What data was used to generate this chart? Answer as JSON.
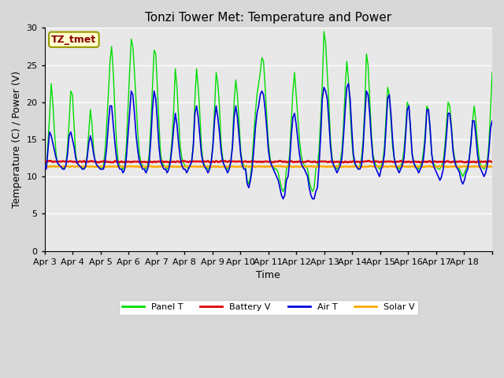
{
  "title": "Tonzi Tower Met: Temperature and Power",
  "xlabel": "Time",
  "ylabel": "Temperature (C) / Power (V)",
  "ylim": [
    0,
    30
  ],
  "yticks": [
    0,
    5,
    10,
    15,
    20,
    25,
    30
  ],
  "x_labels": [
    "Apr 3",
    "Apr 4",
    "Apr 5",
    "Apr 6",
    "Apr 7",
    "Apr 8",
    "Apr 9",
    "Apr 10",
    "Apr 11",
    "Apr 12",
    "Apr 13",
    "Apr 14",
    "Apr 15",
    "Apr 16",
    "Apr 17",
    "Apr 18"
  ],
  "fig_bg_color": "#d8d8d8",
  "plot_bg_color": "#e8e8e8",
  "annotation_text": "TZ_tmet",
  "annotation_fg": "#880000",
  "annotation_bg": "#ffffcc",
  "annotation_edge": "#999900",
  "legend_entries": [
    "Panel T",
    "Battery V",
    "Air T",
    "Solar V"
  ],
  "legend_colors": [
    "#00dd00",
    "#dd0000",
    "#0000dd",
    "#ffaa00"
  ],
  "panel_t_color": "#00dd00",
  "battery_v_color": "#dd0000",
  "air_t_color": "#0000dd",
  "solar_v_color": "#ffaa00",
  "title_fontsize": 11,
  "axis_fontsize": 9,
  "tick_fontsize": 8,
  "grid_color": "#ffffff",
  "panel_t_data": [
    11.5,
    11.3,
    14.5,
    18.0,
    22.5,
    20.0,
    16.0,
    13.0,
    11.8,
    11.5,
    11.3,
    11.2,
    11.0,
    11.5,
    14.0,
    17.5,
    21.5,
    21.0,
    17.0,
    13.0,
    11.8,
    11.5,
    11.3,
    11.2,
    11.0,
    11.5,
    13.0,
    16.0,
    19.0,
    17.0,
    13.5,
    12.0,
    11.5,
    11.3,
    11.2,
    11.0,
    11.5,
    13.5,
    17.0,
    21.0,
    25.5,
    27.5,
    24.0,
    19.0,
    14.5,
    12.0,
    11.5,
    11.3,
    11.0,
    11.5,
    14.0,
    19.0,
    24.0,
    28.5,
    27.5,
    24.0,
    20.0,
    16.0,
    13.0,
    11.8,
    11.5,
    11.3,
    11.0,
    11.5,
    13.0,
    17.0,
    22.0,
    27.0,
    26.5,
    22.0,
    17.0,
    13.0,
    11.8,
    11.5,
    11.3,
    11.0,
    11.5,
    12.5,
    15.0,
    19.0,
    24.5,
    22.0,
    18.0,
    14.0,
    12.5,
    11.8,
    11.5,
    11.3,
    11.0,
    11.5,
    12.0,
    14.5,
    20.5,
    24.5,
    22.0,
    18.5,
    14.0,
    12.0,
    11.5,
    11.3,
    11.0,
    11.3,
    12.0,
    14.5,
    19.0,
    24.0,
    22.5,
    19.5,
    14.5,
    12.5,
    11.5,
    11.3,
    11.0,
    11.3,
    12.0,
    14.5,
    20.0,
    23.0,
    21.0,
    17.5,
    13.5,
    12.0,
    11.5,
    11.3,
    9.5,
    9.0,
    10.0,
    12.0,
    15.5,
    18.5,
    21.0,
    22.5,
    24.0,
    26.0,
    25.5,
    22.0,
    18.0,
    14.5,
    12.5,
    11.5,
    11.3,
    11.0,
    11.0,
    10.5,
    9.5,
    8.5,
    8.0,
    8.5,
    11.0,
    11.3,
    13.0,
    17.5,
    21.5,
    24.0,
    21.0,
    18.0,
    15.0,
    13.0,
    12.0,
    11.5,
    11.3,
    11.0,
    9.5,
    8.5,
    8.0,
    8.5,
    11.0,
    11.5,
    13.5,
    18.0,
    22.5,
    29.5,
    28.0,
    24.0,
    20.0,
    15.0,
    12.5,
    11.5,
    11.3,
    11.0,
    11.5,
    12.0,
    13.5,
    17.0,
    22.0,
    25.5,
    23.0,
    19.0,
    15.0,
    12.5,
    11.5,
    11.3,
    11.0,
    11.5,
    12.5,
    15.0,
    19.5,
    26.5,
    25.0,
    20.5,
    16.0,
    13.0,
    12.0,
    11.5,
    11.3,
    11.0,
    11.5,
    12.0,
    14.0,
    18.0,
    22.0,
    21.0,
    17.5,
    14.0,
    12.5,
    11.5,
    11.3,
    11.0,
    11.5,
    12.0,
    13.5,
    16.5,
    20.0,
    19.5,
    16.0,
    13.0,
    11.8,
    11.5,
    11.3,
    11.0,
    11.5,
    12.0,
    13.5,
    16.0,
    19.5,
    19.0,
    16.0,
    13.0,
    11.8,
    11.5,
    11.3,
    11.0,
    11.0,
    11.5,
    12.0,
    14.0,
    17.0,
    20.0,
    19.5,
    17.0,
    14.0,
    12.5,
    11.5,
    11.3,
    11.0,
    10.5,
    10.0,
    10.5,
    11.0,
    11.5,
    12.5,
    15.0,
    17.5,
    19.5,
    17.5,
    14.5,
    12.5,
    11.5,
    11.3,
    11.0,
    11.5,
    12.0,
    14.5,
    19.0,
    24.0
  ],
  "air_t_data": [
    11.5,
    11.0,
    13.5,
    16.0,
    15.5,
    14.5,
    13.5,
    12.5,
    11.8,
    11.5,
    11.3,
    11.0,
    11.0,
    11.5,
    13.0,
    15.5,
    16.0,
    15.0,
    14.0,
    12.5,
    11.8,
    11.5,
    11.3,
    11.0,
    11.0,
    11.3,
    12.5,
    14.5,
    15.5,
    14.5,
    13.0,
    12.0,
    11.5,
    11.3,
    11.0,
    11.0,
    11.0,
    12.0,
    14.0,
    17.0,
    19.5,
    19.5,
    17.0,
    14.5,
    12.5,
    11.5,
    11.0,
    11.0,
    10.5,
    11.0,
    12.5,
    15.5,
    18.5,
    21.5,
    21.0,
    18.5,
    15.5,
    13.5,
    12.0,
    11.5,
    11.0,
    11.0,
    10.5,
    11.0,
    12.0,
    15.0,
    19.0,
    21.5,
    20.5,
    17.5,
    14.0,
    12.0,
    11.5,
    11.0,
    11.0,
    10.5,
    11.0,
    12.0,
    14.0,
    16.5,
    18.5,
    17.0,
    14.5,
    12.5,
    11.5,
    11.0,
    11.0,
    10.5,
    11.0,
    11.5,
    12.0,
    14.0,
    18.5,
    19.5,
    18.0,
    15.5,
    13.0,
    11.8,
    11.3,
    11.0,
    10.5,
    11.0,
    12.0,
    14.0,
    17.5,
    19.5,
    18.0,
    16.0,
    13.5,
    12.0,
    11.5,
    11.0,
    10.5,
    11.0,
    12.0,
    14.0,
    18.0,
    19.5,
    18.0,
    15.5,
    13.0,
    11.5,
    11.0,
    11.0,
    9.0,
    8.5,
    9.5,
    11.0,
    13.5,
    16.5,
    18.5,
    19.5,
    21.0,
    21.5,
    21.0,
    19.0,
    16.5,
    13.5,
    12.0,
    11.5,
    11.0,
    10.5,
    10.0,
    9.5,
    8.5,
    7.5,
    7.0,
    7.5,
    9.5,
    10.0,
    12.0,
    15.5,
    18.0,
    18.5,
    17.0,
    15.0,
    13.0,
    11.8,
    11.3,
    11.0,
    10.5,
    10.0,
    8.5,
    7.5,
    7.0,
    7.0,
    8.0,
    8.5,
    11.5,
    15.5,
    20.5,
    22.0,
    21.5,
    20.5,
    17.5,
    14.0,
    12.0,
    11.5,
    11.0,
    10.5,
    11.0,
    11.5,
    12.5,
    15.5,
    19.0,
    22.0,
    22.5,
    20.5,
    16.5,
    13.0,
    11.8,
    11.3,
    11.0,
    11.0,
    11.5,
    14.0,
    18.0,
    21.5,
    21.0,
    18.5,
    15.0,
    12.5,
    11.5,
    11.0,
    10.5,
    10.0,
    11.0,
    11.5,
    13.0,
    16.5,
    20.5,
    21.0,
    18.5,
    15.0,
    12.5,
    11.5,
    11.0,
    10.5,
    11.0,
    11.5,
    12.5,
    15.5,
    19.0,
    19.5,
    16.5,
    13.0,
    11.8,
    11.3,
    11.0,
    10.5,
    11.0,
    11.5,
    12.5,
    15.0,
    19.0,
    19.0,
    16.5,
    13.0,
    11.5,
    11.0,
    10.5,
    10.0,
    9.5,
    10.0,
    11.0,
    13.0,
    15.5,
    18.5,
    18.5,
    16.5,
    13.5,
    12.0,
    11.3,
    11.0,
    10.5,
    9.5,
    9.0,
    9.5,
    10.5,
    11.0,
    12.5,
    14.5,
    17.5,
    17.5,
    15.5,
    13.0,
    11.5,
    11.0,
    10.5,
    10.0,
    10.5,
    11.5,
    13.5,
    16.5,
    17.5
  ],
  "battery_v_base": 12.0,
  "solar_v_base": 11.35
}
